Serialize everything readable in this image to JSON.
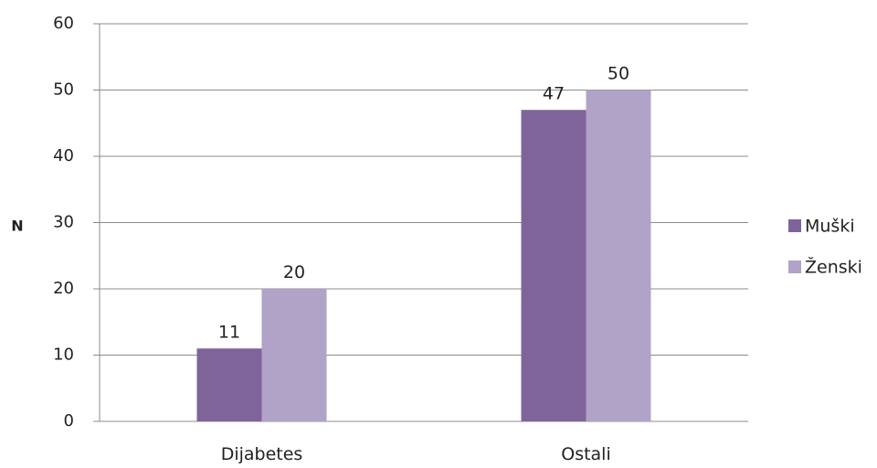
{
  "chart_data": {
    "type": "bar",
    "title": "",
    "xlabel": "",
    "ylabel": "N",
    "ylim": [
      0,
      60
    ],
    "yticks": [
      0,
      10,
      20,
      30,
      40,
      50,
      60
    ],
    "categories": [
      "Dijabetes",
      "Ostali"
    ],
    "series": [
      {
        "name": "Muški",
        "values": [
          11,
          47
        ],
        "color": "#7f6499"
      },
      {
        "name": "Ženski",
        "values": [
          20,
          50
        ],
        "color": "#b1a2c7"
      }
    ],
    "grid": true,
    "legend_position": "right",
    "data_labels": true
  }
}
